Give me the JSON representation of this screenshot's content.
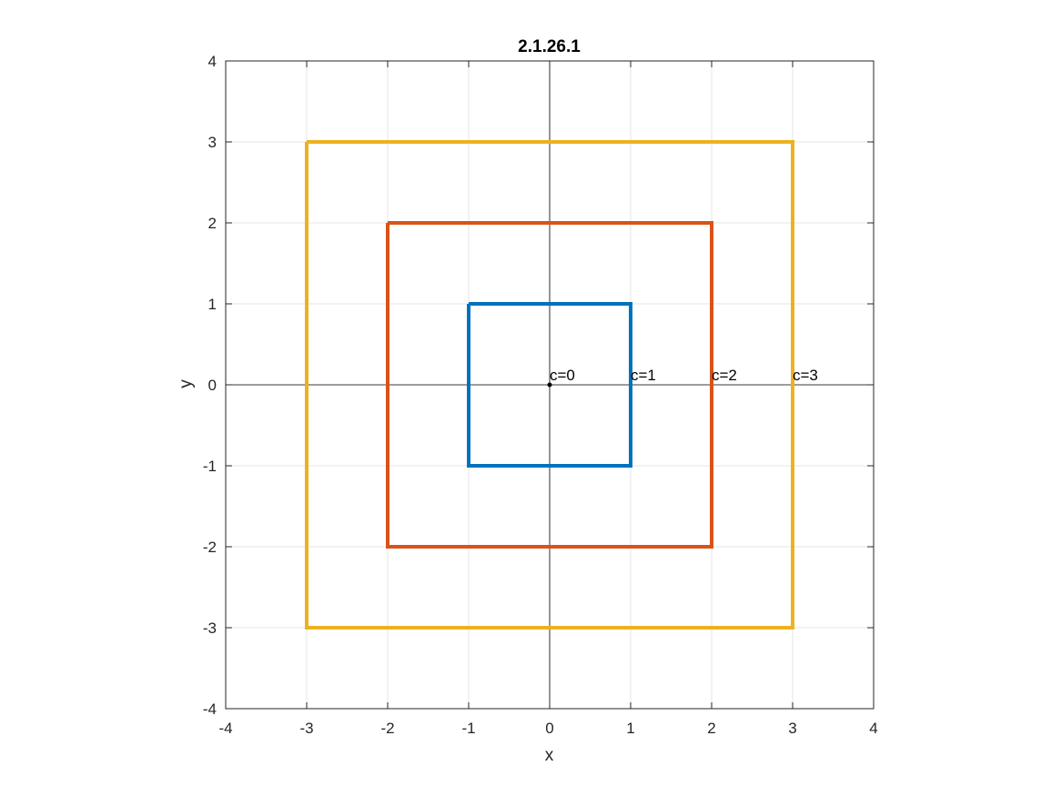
{
  "chart_data": {
    "type": "line",
    "title": "2.1.26.1",
    "xlabel": "x",
    "ylabel": "y",
    "xlim": [
      -4,
      4
    ],
    "ylim": [
      -4,
      4
    ],
    "xticks": [
      -4,
      -3,
      -2,
      -1,
      0,
      1,
      2,
      3,
      4
    ],
    "yticks": [
      -4,
      -3,
      -2,
      -1,
      0,
      1,
      2,
      3,
      4
    ],
    "xtick_labels": [
      "-4",
      "-3",
      "-2",
      "-1",
      "0",
      "1",
      "2",
      "3",
      "4"
    ],
    "ytick_labels": [
      "-4",
      "-3",
      "-2",
      "-1",
      "0",
      "1",
      "2",
      "3",
      "4"
    ],
    "grid": true,
    "aspect": "equal",
    "axis_lines_through_origin": true,
    "colors": {
      "grid": "#e5e5e5",
      "axes_box": "#262626",
      "origin_axes": "#000000"
    },
    "series": [
      {
        "color": "#0072BD",
        "x": [
          -1,
          1,
          1,
          -1,
          -1
        ],
        "y": [
          1,
          1,
          -1,
          -1,
          1
        ]
      },
      {
        "color": "#D95319",
        "x": [
          -2,
          2,
          2,
          -2,
          -2
        ],
        "y": [
          2,
          2,
          -2,
          -2,
          2
        ]
      },
      {
        "color": "#EDB120",
        "x": [
          -3,
          3,
          3,
          -3,
          -3
        ],
        "y": [
          3,
          3,
          -3,
          -3,
          3
        ]
      }
    ],
    "points": [
      {
        "x": 0,
        "y": 0,
        "color": "#000000"
      }
    ],
    "annotations": [
      {
        "text": "c=0",
        "x": 0,
        "y": 0
      },
      {
        "text": "c=1",
        "x": 1,
        "y": 0
      },
      {
        "text": "c=2",
        "x": 2,
        "y": 0
      },
      {
        "text": "c=3",
        "x": 3,
        "y": 0
      }
    ]
  }
}
